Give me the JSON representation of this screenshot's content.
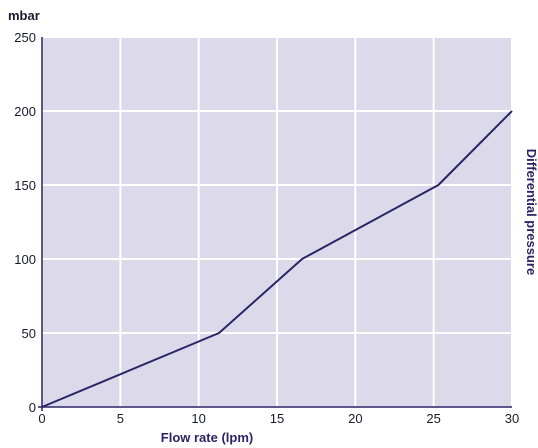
{
  "chart_data": {
    "type": "line",
    "x": [
      0,
      11.3,
      16.6,
      25.3,
      30
    ],
    "series": [
      {
        "values": [
          0,
          50,
          100,
          150,
          200
        ]
      }
    ],
    "xlabel": "Flow rate (lpm)",
    "ylabel": "Differential pressure",
    "y_unit": "mbar",
    "xlim": [
      0,
      30
    ],
    "ylim": [
      0,
      250
    ],
    "x_ticks": [
      0,
      5,
      10,
      15,
      20,
      25,
      30
    ],
    "y_ticks": [
      0,
      50,
      100,
      150,
      200,
      250
    ],
    "grid": true,
    "colors": {
      "plot_background": "#dcdaea",
      "grid": "#ffffff",
      "line": "#2b2466",
      "axis": "#2b2466"
    }
  }
}
